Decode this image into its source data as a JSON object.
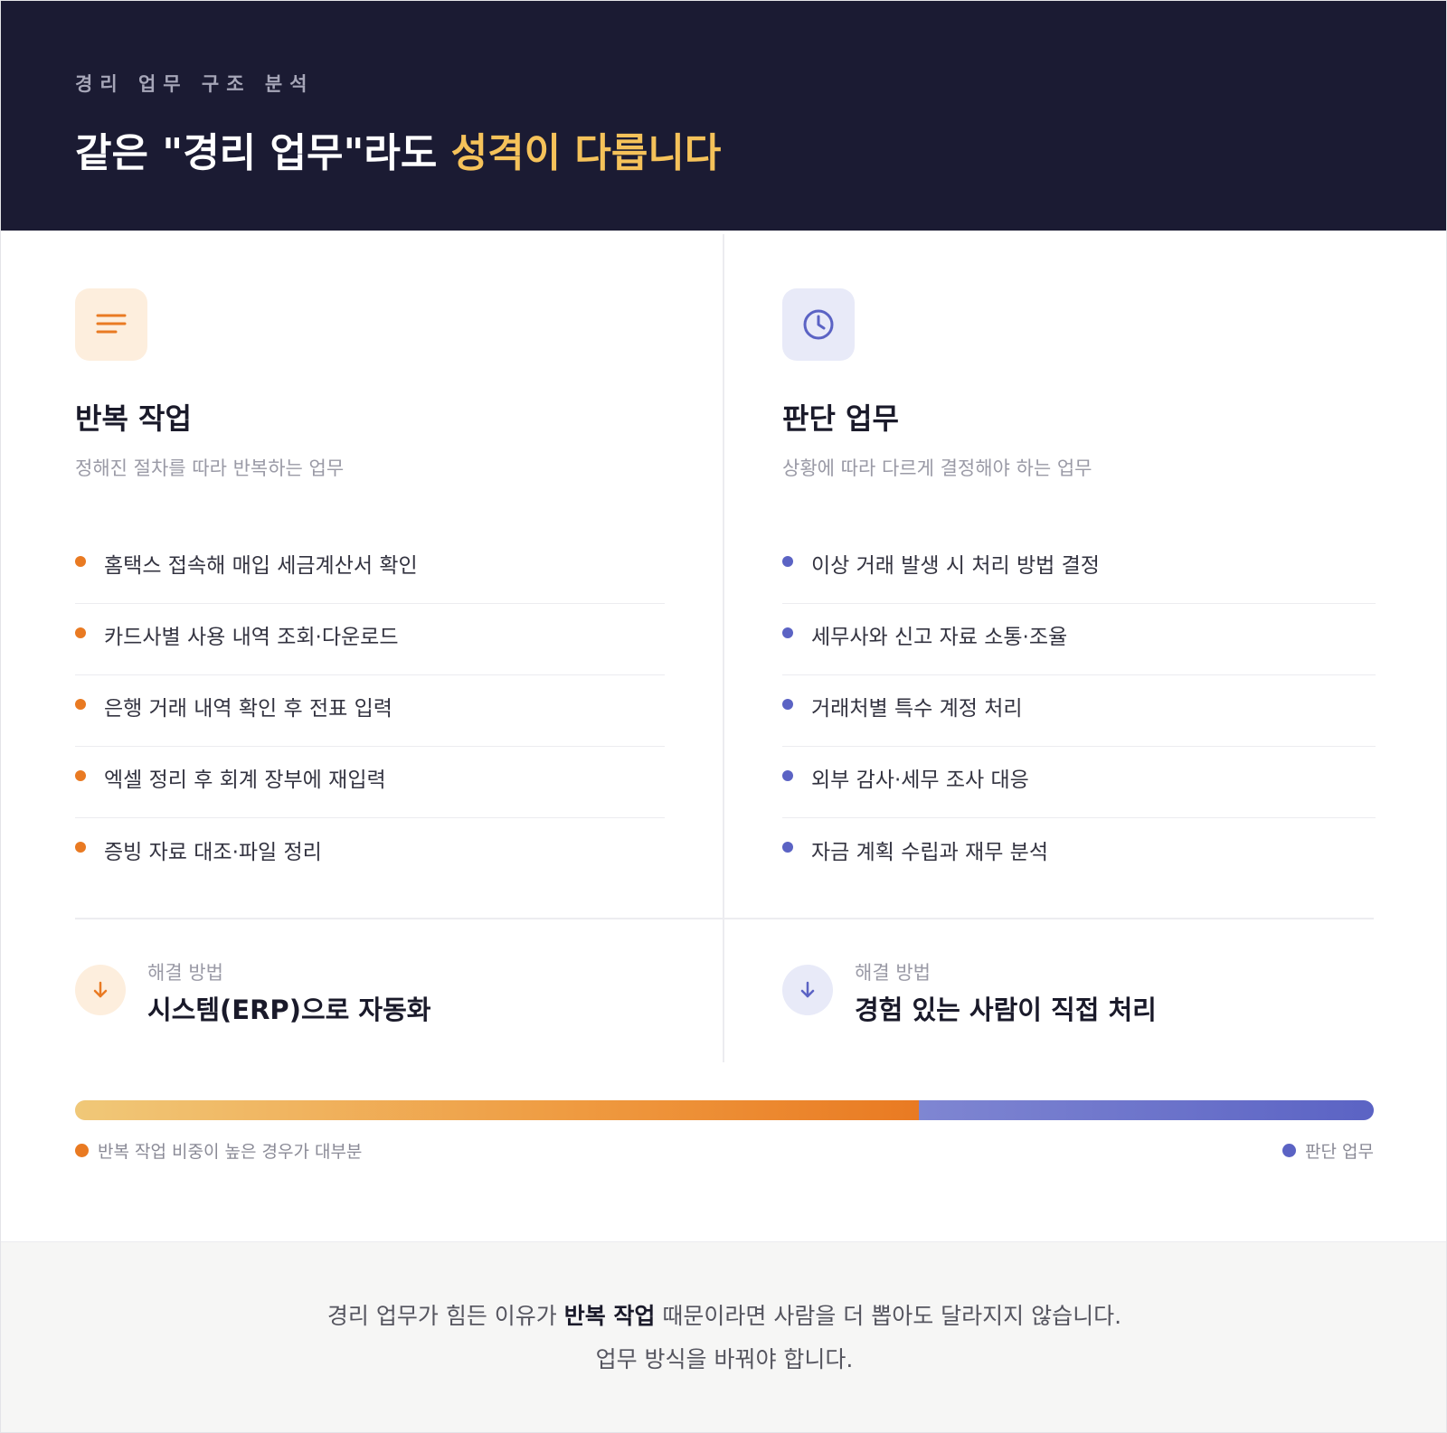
{
  "header": {
    "eyebrow": "경리 업무 구조 분석",
    "headline_prefix": "같은 \"경리 업무\"라도 ",
    "headline_accent": "성격이 다릅니다"
  },
  "columns": [
    {
      "icon": "lines-icon",
      "title": "반복 작업",
      "subtitle": "정해진 절차를 따라 반복하는 업무",
      "items": [
        "홈택스 접속해 매입 세금계산서 확인",
        "카드사별 사용 내역 조회·다운로드",
        "은행 거래 내역 확인 후 전표 입력",
        "엑셀 정리 후 회계 장부에 재입력",
        "증빙 자료 대조·파일 정리"
      ],
      "solution_label": "해결 방법",
      "solution_value": "시스템(ERP)으로 자동화",
      "accent_color": "#e97a22"
    },
    {
      "icon": "clock-icon",
      "title": "판단 업무",
      "subtitle": "상황에 따라 다르게 결정해야 하는 업무",
      "items": [
        "이상 거래 발생 시 처리 방법 결정",
        "세무사와 신고 자료 소통·조율",
        "거래처별 특수 계정 처리",
        "외부 감사·세무 조사 대응",
        "자금 계획 수립과 재무 분석"
      ],
      "solution_label": "해결 방법",
      "solution_value": "경험 있는 사람이 직접 처리",
      "accent_color": "#5b63c4"
    }
  ],
  "ratio_bar": {
    "repeat_fraction": 0.65,
    "left_legend": "반복 작업 비중이 높은 경우가 대부분",
    "right_legend": "판단 업무",
    "repeat_color": "#e97a22",
    "judge_color": "#5b63c4"
  },
  "footer": {
    "line1_before": "경리 업무가 힘든 이유가 ",
    "line1_bold": "반복 작업",
    "line1_after": " 때문이라면 사람을 더 뽑아도 달라지지 않습니다.",
    "line2": "업무 방식을 바꿔야 합니다."
  }
}
